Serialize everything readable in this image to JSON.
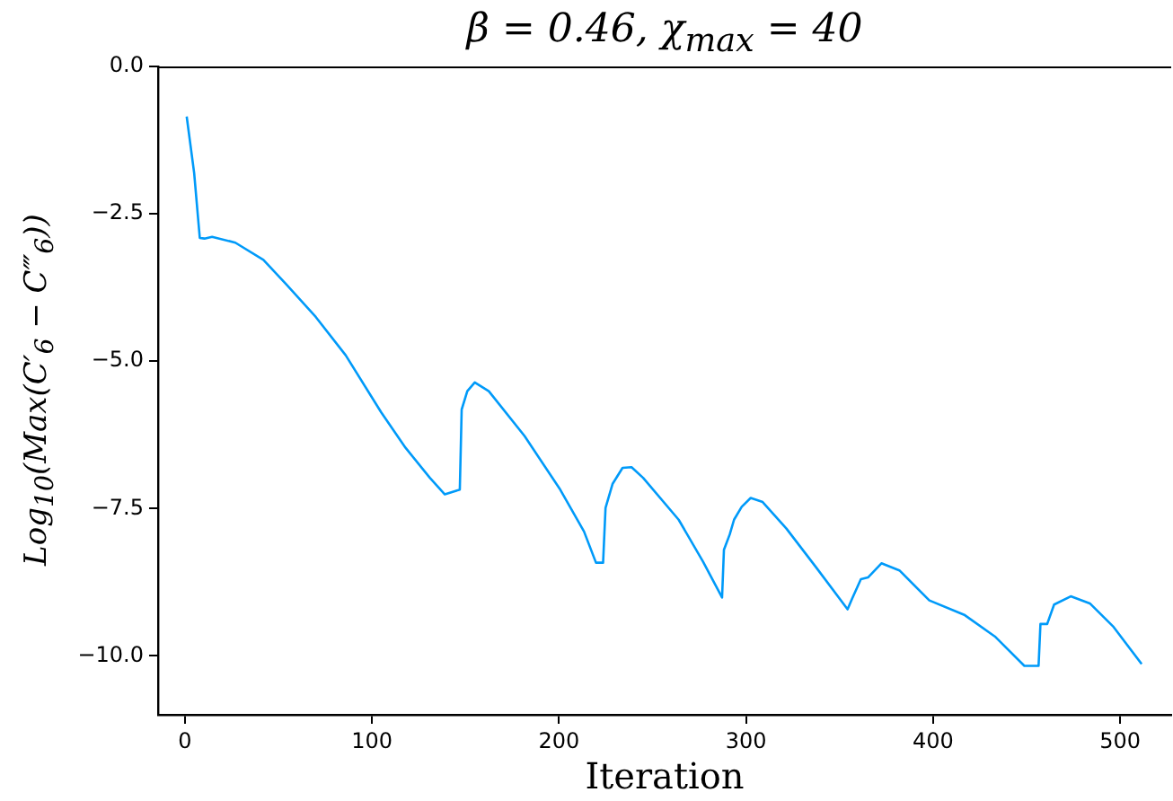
{
  "chart_data": {
    "type": "line",
    "title": "β = 0.46, χ$_{max}$ = 40",
    "xlabel": "Iteration",
    "ylabel": "Log$_{10}$(Max(C′$_{6}$ − C‴$_{6}$))",
    "xlim": [
      -14.3,
      527.3
    ],
    "xticks": [
      0,
      100,
      200,
      300,
      400,
      500
    ],
    "ylim": [
      -11,
      0
    ],
    "yticks": [
      {
        "value": -10,
        "label": "−10.0"
      },
      {
        "value": -7.5,
        "label": "−7.5"
      },
      {
        "value": -5,
        "label": "−5.0"
      },
      {
        "value": -2.5,
        "label": "−2.5"
      },
      {
        "value": 0,
        "label": "0.0"
      }
    ],
    "grid": false,
    "legend": false,
    "marker": "none",
    "line_style": "solid",
    "series": [
      {
        "color": "#009af9",
        "x": [
          1,
          5,
          8,
          10.5,
          14.6,
          27,
          42,
          54,
          70,
          86,
          105,
          118,
          131,
          139,
          147,
          148,
          151,
          155,
          162.5,
          181.6,
          200.7,
          213.4,
          219.8,
          223.6,
          224.9,
          228.7,
          234,
          238.8,
          245,
          264,
          277,
          287.2,
          288.2,
          291.3,
          293.6,
          297.7,
          302.5,
          308.9,
          321.6,
          337.5,
          354.3,
          356.6,
          361.4,
          365.2,
          372.4,
          382,
          398,
          417,
          433,
          448.8,
          456.4,
          457.4,
          461,
          464.7,
          473.6,
          483.8,
          496.5,
          511.5
        ],
        "values": [
          -0.85,
          -1.81,
          -2.91,
          -2.92,
          -2.89,
          -2.99,
          -3.28,
          -3.69,
          -4.25,
          -4.9,
          -5.87,
          -6.47,
          -6.98,
          -7.26,
          -7.18,
          -5.82,
          -5.51,
          -5.36,
          -5.51,
          -6.27,
          -7.18,
          -7.89,
          -8.42,
          -8.42,
          -7.49,
          -7.08,
          -6.81,
          -6.8,
          -6.98,
          -7.69,
          -8.4,
          -9.01,
          -8.2,
          -7.94,
          -7.69,
          -7.47,
          -7.32,
          -7.39,
          -7.84,
          -8.5,
          -9.21,
          -9.04,
          -8.7,
          -8.67,
          -8.43,
          -8.55,
          -9.06,
          -9.31,
          -9.67,
          -10.17,
          -10.17,
          -9.46,
          -9.46,
          -9.13,
          -8.99,
          -9.11,
          -9.51,
          -10.14
        ]
      }
    ]
  }
}
